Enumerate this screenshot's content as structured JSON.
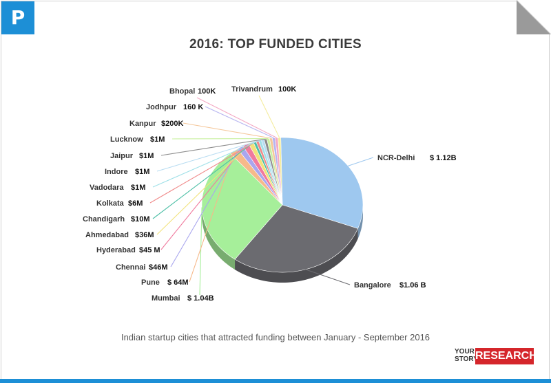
{
  "header": {
    "title": "2016: TOP FUNDED CITIES",
    "logo_icon": "p-logo-icon",
    "logo_glyph": "P",
    "accent_color": "#1d8fd6"
  },
  "footer": {
    "caption": "Indian startup cities that attracted funding between January - September 2016",
    "brand_small_1": "YOUR",
    "brand_small_2": "STORY",
    "brand_research": "RESEARCH",
    "brand_color": "#d5262b"
  },
  "chart_data": {
    "type": "pie",
    "title": "2016: TOP FUNDED CITIES",
    "subtitle": "Indian startup cities that attracted funding between January - September 2016",
    "unit": "USD",
    "slices": [
      {
        "name": "NCR-Delhi",
        "label": "$ 1.12B",
        "value": 1120,
        "color": "#9ec8ef"
      },
      {
        "name": "Bangalore",
        "label": "$1.06 B",
        "value": 1060,
        "color": "#6b6b70"
      },
      {
        "name": "Mumbai",
        "label": "$ 1.04B",
        "value": 1040,
        "color": "#a6ef9a"
      },
      {
        "name": "Pune",
        "label": "$ 64M",
        "value": 64,
        "color": "#f6b98a"
      },
      {
        "name": "Chennai",
        "label": "$46M",
        "value": 46,
        "color": "#a9a6ee"
      },
      {
        "name": "Hyderabad",
        "label": "$45 M",
        "value": 45,
        "color": "#f07a9e"
      },
      {
        "name": "Ahmedabad",
        "label": "$36M",
        "value": 36,
        "color": "#f2e27a"
      },
      {
        "name": "Chandigarh",
        "label": "$10M",
        "value": 10,
        "color": "#4dbfa6"
      },
      {
        "name": "Kolkata",
        "label": "$6M",
        "value": 6,
        "color": "#f08a8a"
      },
      {
        "name": "Vadodara",
        "label": "$1M",
        "value": 1,
        "color": "#9fe0e8"
      },
      {
        "name": "Indore",
        "label": "$1M",
        "value": 1,
        "color": "#b9ddf2"
      },
      {
        "name": "Jaipur",
        "label": "$1M",
        "value": 1,
        "color": "#8c8c8c"
      },
      {
        "name": "Lucknow",
        "label": "$1M",
        "value": 1,
        "color": "#c9f0a0"
      },
      {
        "name": "Kanpur",
        "label": "$200K",
        "value": 0.2,
        "color": "#f5c79a"
      },
      {
        "name": "Jodhpur",
        "label": "160 K",
        "value": 0.16,
        "color": "#b7b4f0"
      },
      {
        "name": "Bhopal",
        "label": "100K",
        "value": 0.1,
        "color": "#f4a9c4"
      },
      {
        "name": "Trivandrum",
        "label": "100K",
        "value": 0.1,
        "color": "#f4ec9e"
      }
    ]
  }
}
